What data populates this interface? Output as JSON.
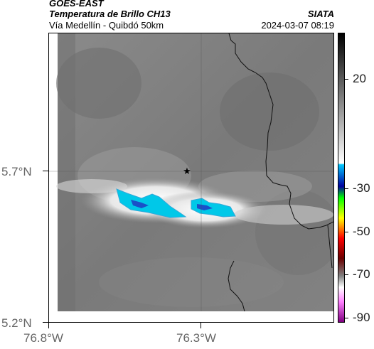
{
  "header": {
    "title_line1": "GOES-EAST",
    "title_line2": "Temperatura de Brillo CH13",
    "subtitle": "Vía Medellín - Quibdó 50km",
    "organization": "SIATA",
    "datetime": "2024-03-07 08:19"
  },
  "map": {
    "lat_labels": [
      "5.7°N",
      "5.2°N"
    ],
    "lon_labels": [
      "76.8°W",
      "76.3°W"
    ],
    "marker": "star-icon"
  },
  "colorbar": {
    "labels": [
      "20",
      "-30",
      "-50",
      "-70",
      "-90"
    ],
    "colors": [
      "#000000",
      "#ffffff",
      "#00c8ff",
      "#0000a0",
      "#00ff00",
      "#ffff00",
      "#ff0000",
      "#6a0000",
      "#ff80ff",
      "#800080"
    ]
  }
}
